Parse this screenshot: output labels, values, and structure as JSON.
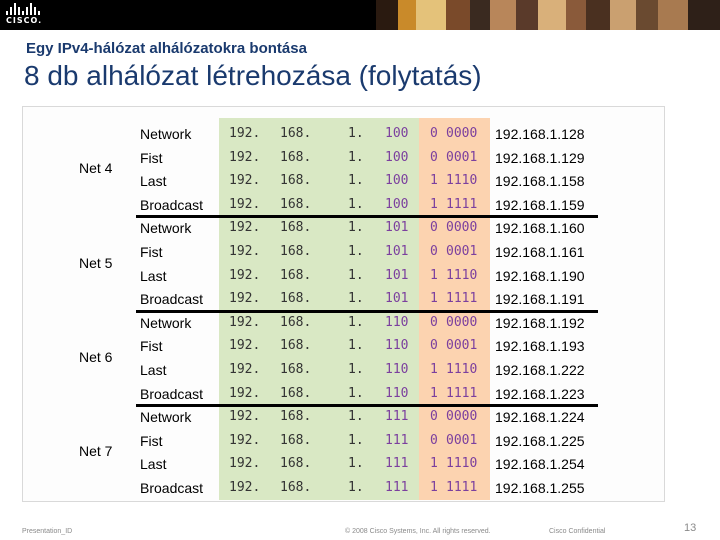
{
  "header": {
    "logo_text": "CISCO.",
    "photo_colors": [
      "#2a1a10",
      "#c98a2a",
      "#e4c27a",
      "#7a4a2a",
      "#3a2a20",
      "#b8865a",
      "#5a3a2a",
      "#d9b07a",
      "#8a5a3a",
      "#4a3020",
      "#caa070",
      "#6a4a30",
      "#a87a50",
      "#2e2018"
    ]
  },
  "subtitle": "Egy IPv4-hálózat alhálózatokra bontása",
  "title": "8 db alhálózat létrehozása (folytatás)",
  "colors": {
    "title": "#1a3a6e",
    "green_bg": "#d9e8c4",
    "orange_bg": "#fcd3b0",
    "purple_text": "#7b3f9e"
  },
  "nets": [
    {
      "name": "Net 4",
      "rows": [
        {
          "label": "Network",
          "o1": "192.",
          "o2": "168.",
          "o3": "1.",
          "o4": "100",
          "b1": "0",
          "b2": "0000",
          "addr": "192.168.1.128"
        },
        {
          "label": "Fist",
          "o1": "192.",
          "o2": "168.",
          "o3": "1.",
          "o4": "100",
          "b1": "0",
          "b2": "0001",
          "addr": "192.168.1.129"
        },
        {
          "label": "Last",
          "o1": "192.",
          "o2": "168.",
          "o3": "1.",
          "o4": "100",
          "b1": "1",
          "b2": "1110",
          "addr": "192.168.1.158"
        },
        {
          "label": "Broadcast",
          "o1": "192.",
          "o2": "168.",
          "o3": "1.",
          "o4": "100",
          "b1": "1",
          "b2": "1111",
          "addr": "192.168.1.159"
        }
      ]
    },
    {
      "name": "Net 5",
      "rows": [
        {
          "label": "Network",
          "o1": "192.",
          "o2": "168.",
          "o3": "1.",
          "o4": "101",
          "b1": "0",
          "b2": "0000",
          "addr": "192.168.1.160"
        },
        {
          "label": "Fist",
          "o1": "192.",
          "o2": "168.",
          "o3": "1.",
          "o4": "101",
          "b1": "0",
          "b2": "0001",
          "addr": "192.168.1.161"
        },
        {
          "label": "Last",
          "o1": "192.",
          "o2": "168.",
          "o3": "1.",
          "o4": "101",
          "b1": "1",
          "b2": "1110",
          "addr": "192.168.1.190"
        },
        {
          "label": "Broadcast",
          "o1": "192.",
          "o2": "168.",
          "o3": "1.",
          "o4": "101",
          "b1": "1",
          "b2": "1111",
          "addr": "192.168.1.191"
        }
      ]
    },
    {
      "name": "Net 6",
      "rows": [
        {
          "label": "Network",
          "o1": "192.",
          "o2": "168.",
          "o3": "1.",
          "o4": "110",
          "b1": "0",
          "b2": "0000",
          "addr": "192.168.1.192"
        },
        {
          "label": "Fist",
          "o1": "192.",
          "o2": "168.",
          "o3": "1.",
          "o4": "110",
          "b1": "0",
          "b2": "0001",
          "addr": "192.168.1.193"
        },
        {
          "label": "Last",
          "o1": "192.",
          "o2": "168.",
          "o3": "1.",
          "o4": "110",
          "b1": "1",
          "b2": "1110",
          "addr": "192.168.1.222"
        },
        {
          "label": "Broadcast",
          "o1": "192.",
          "o2": "168.",
          "o3": "1.",
          "o4": "110",
          "b1": "1",
          "b2": "1111",
          "addr": "192.168.1.223"
        }
      ]
    },
    {
      "name": "Net 7",
      "rows": [
        {
          "label": "Network",
          "o1": "192.",
          "o2": "168.",
          "o3": "1.",
          "o4": "111",
          "b1": "0",
          "b2": "0000",
          "addr": "192.168.1.224"
        },
        {
          "label": "Fist",
          "o1": "192.",
          "o2": "168.",
          "o3": "1.",
          "o4": "111",
          "b1": "0",
          "b2": "0001",
          "addr": "192.168.1.225"
        },
        {
          "label": "Last",
          "o1": "192.",
          "o2": "168.",
          "o3": "1.",
          "o4": "111",
          "b1": "1",
          "b2": "1110",
          "addr": "192.168.1.254"
        },
        {
          "label": "Broadcast",
          "o1": "192.",
          "o2": "168.",
          "o3": "1.",
          "o4": "111",
          "b1": "1",
          "b2": "1111",
          "addr": "192.168.1.255"
        }
      ]
    }
  ],
  "footer": {
    "left": "Presentation_ID",
    "copyright": "© 2008 Cisco Systems, Inc. All rights reserved.",
    "confidential": "Cisco Confidential",
    "page": "13"
  }
}
